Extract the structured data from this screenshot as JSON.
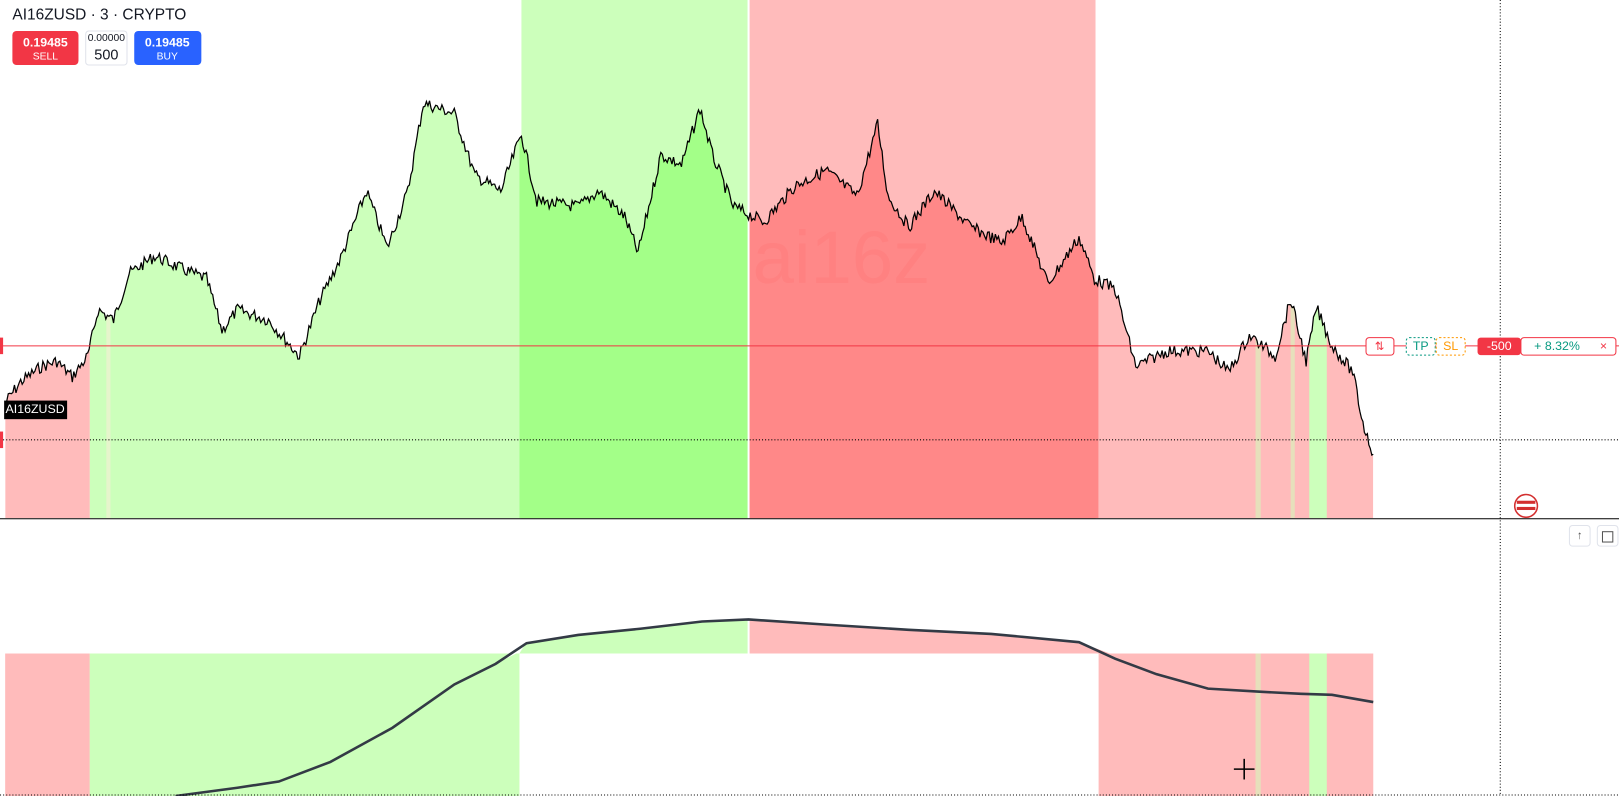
{
  "header": {
    "symbol_title": "AI16ZUSD · 3 · CRYPTO"
  },
  "order_panel": {
    "sell_price": "0.19485",
    "sell_label": "SELL",
    "spread": "0.00000",
    "quantity": "500",
    "buy_price": "0.19485",
    "buy_label": "BUY"
  },
  "chart": {
    "symbol_label": "AI16ZUSD",
    "watermark": "ai16z"
  },
  "position": {
    "tp": "TP",
    "sl": "SL",
    "quantity": "-500",
    "pnl": "+ 8.32%"
  }
}
